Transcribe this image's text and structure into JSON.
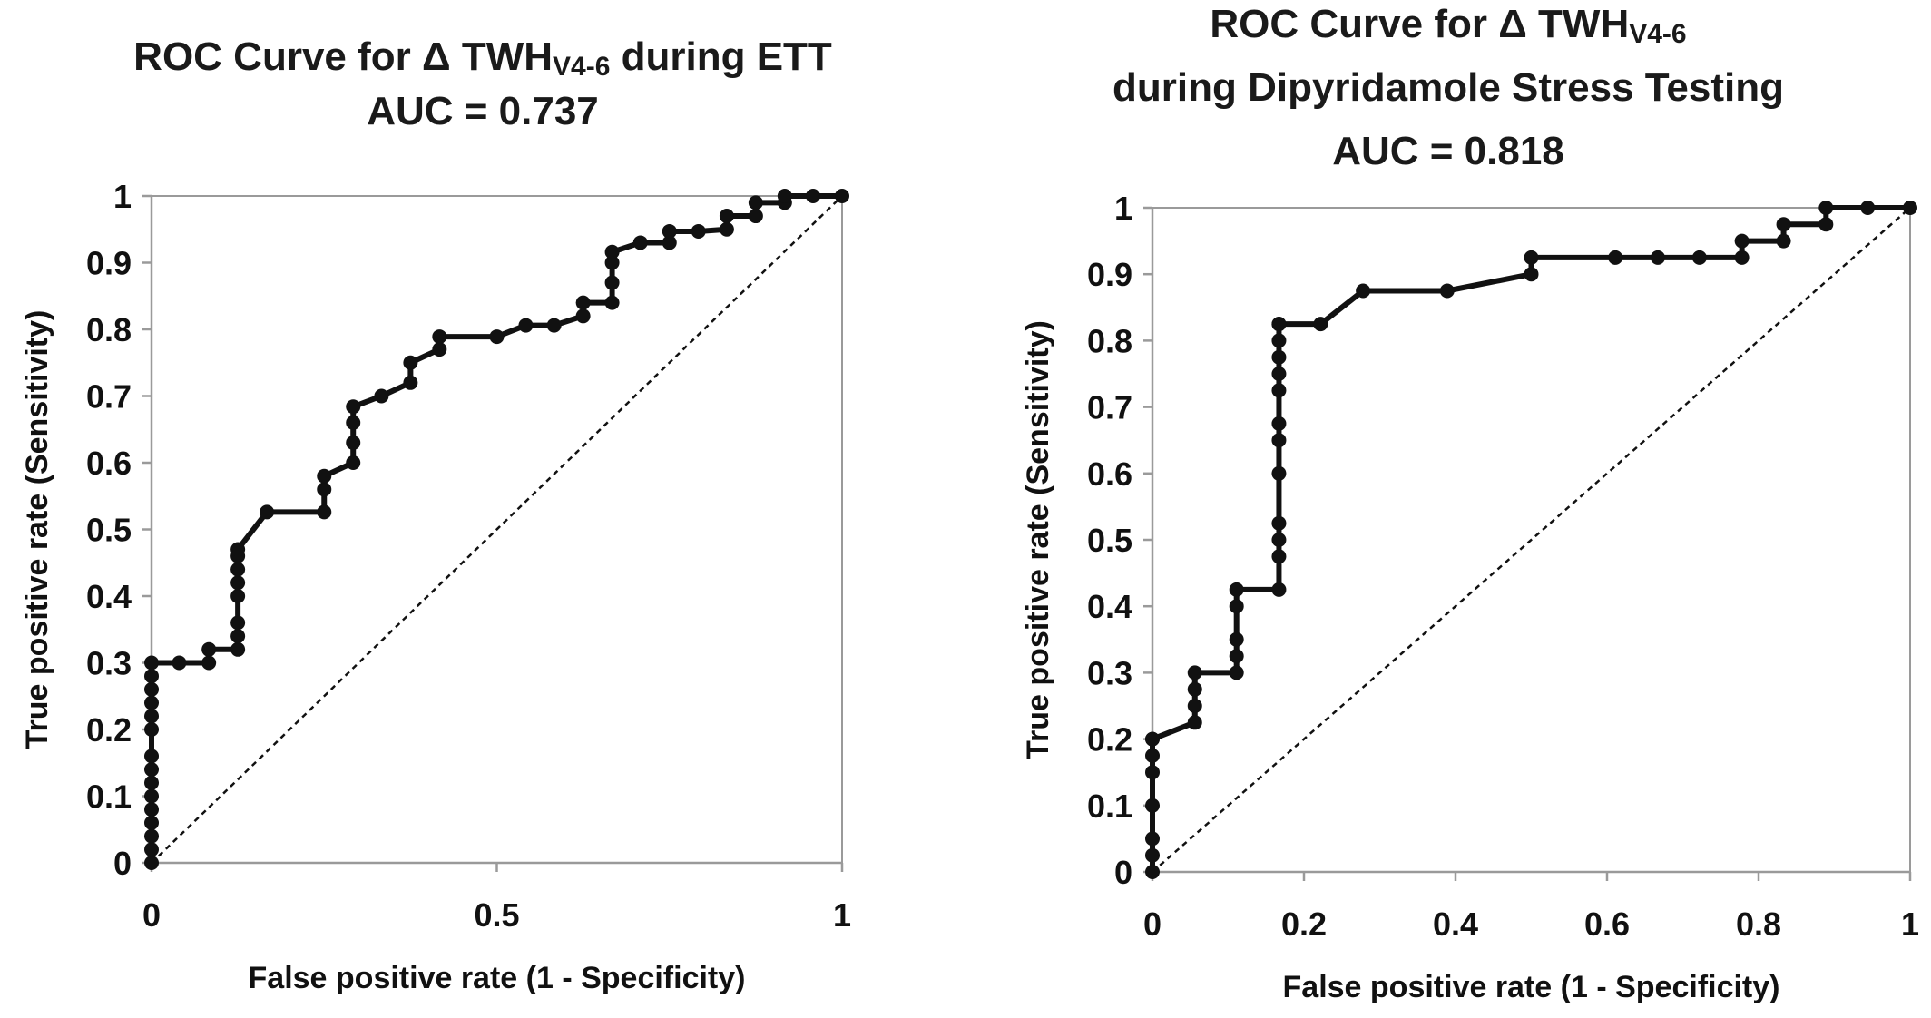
{
  "chart_data": [
    {
      "type": "line",
      "title_prefix": "ROC Curve for Δ TWH",
      "title_sub": "V4-6",
      "title_suffix": " during ETT",
      "title_line2": "",
      "auc_text": "AUC = 0.737",
      "xlabel": "False positive rate (1 - Specificity)",
      "ylabel": "True positive rate (Sensitivity)",
      "xlim": [
        0,
        1
      ],
      "ylim": [
        0,
        1
      ],
      "x_ticks": [
        "0",
        "0.5",
        "1"
      ],
      "x_tick_values": [
        0,
        0.5,
        1
      ],
      "y_ticks": [
        "0",
        "0.1",
        "0.2",
        "0.3",
        "0.4",
        "0.5",
        "0.6",
        "0.7",
        "0.8",
        "0.9",
        "1"
      ],
      "y_tick_values": [
        0,
        0.1,
        0.2,
        0.3,
        0.4,
        0.5,
        0.6,
        0.7,
        0.8,
        0.9,
        1
      ],
      "grid": false,
      "reference_line": "diagonal dashed",
      "series": [
        {
          "x": [
            0,
            0,
            0,
            0,
            0,
            0,
            0,
            0,
            0,
            0,
            0,
            0,
            0,
            0,
            0,
            0.04,
            0.083,
            0.083,
            0.125,
            0.125,
            0.125,
            0.125,
            0.125,
            0.125,
            0.125,
            0.125,
            0.167,
            0.25,
            0.25,
            0.25,
            0.292,
            0.292,
            0.292,
            0.292,
            0.333,
            0.375,
            0.375,
            0.417,
            0.417,
            0.5,
            0.542,
            0.583,
            0.625,
            0.625,
            0.667,
            0.667,
            0.667,
            0.667,
            0.708,
            0.75,
            0.75,
            0.792,
            0.833,
            0.833,
            0.875,
            0.875,
            0.917,
            0.917,
            0.958,
            1
          ],
          "y": [
            0,
            0.02,
            0.04,
            0.06,
            0.08,
            0.1,
            0.12,
            0.14,
            0.16,
            0.2,
            0.22,
            0.24,
            0.26,
            0.28,
            0.3,
            0.3,
            0.3,
            0.32,
            0.32,
            0.34,
            0.36,
            0.4,
            0.42,
            0.44,
            0.46,
            0.47,
            0.526,
            0.526,
            0.56,
            0.58,
            0.6,
            0.63,
            0.66,
            0.684,
            0.7,
            0.72,
            0.75,
            0.77,
            0.789,
            0.789,
            0.806,
            0.806,
            0.82,
            0.84,
            0.84,
            0.87,
            0.9,
            0.916,
            0.93,
            0.93,
            0.947,
            0.947,
            0.95,
            0.97,
            0.97,
            0.99,
            0.99,
            1,
            1,
            1
          ]
        }
      ]
    },
    {
      "type": "line",
      "title_prefix": "ROC Curve for Δ TWH",
      "title_sub": "V4-6",
      "title_suffix": "",
      "title_line2": "during Dipyridamole Stress Testing",
      "auc_text": "AUC = 0.818",
      "xlabel": "False positive rate (1 - Specificity)",
      "ylabel": "True positive rate (Sensitivity)",
      "xlim": [
        0,
        1
      ],
      "ylim": [
        0,
        1
      ],
      "x_ticks": [
        "0",
        "0.2",
        "0.4",
        "0.6",
        "0.8",
        "1"
      ],
      "x_tick_values": [
        0,
        0.2,
        0.4,
        0.6,
        0.8,
        1
      ],
      "y_ticks": [
        "0",
        "0.1",
        "0.2",
        "0.3",
        "0.4",
        "0.5",
        "0.6",
        "0.7",
        "0.8",
        "0.9",
        "1"
      ],
      "y_tick_values": [
        0,
        0.1,
        0.2,
        0.3,
        0.4,
        0.5,
        0.6,
        0.7,
        0.8,
        0.9,
        1
      ],
      "grid": false,
      "reference_line": "diagonal dashed",
      "series": [
        {
          "x": [
            0,
            0,
            0,
            0,
            0,
            0,
            0,
            0,
            0.056,
            0.056,
            0.056,
            0.056,
            0.111,
            0.111,
            0.111,
            0.111,
            0.111,
            0.167,
            0.167,
            0.167,
            0.167,
            0.167,
            0.167,
            0.167,
            0.167,
            0.167,
            0.167,
            0.167,
            0.167,
            0.167,
            0.167,
            0.222,
            0.278,
            0.389,
            0.5,
            0.5,
            0.611,
            0.667,
            0.722,
            0.778,
            0.778,
            0.833,
            0.833,
            0.889,
            0.889,
            0.944,
            1
          ],
          "y": [
            0,
            0.025,
            0.05,
            0.1,
            0.15,
            0.175,
            0.2,
            0.2,
            0.225,
            0.25,
            0.275,
            0.3,
            0.3,
            0.325,
            0.35,
            0.4,
            0.425,
            0.425,
            0.475,
            0.5,
            0.525,
            0.6,
            0.65,
            0.675,
            0.725,
            0.75,
            0.775,
            0.8,
            0.825,
            0.825,
            0.825,
            0.825,
            0.875,
            0.875,
            0.9,
            0.925,
            0.925,
            0.925,
            0.925,
            0.925,
            0.95,
            0.95,
            0.975,
            0.975,
            1,
            1,
            1
          ]
        }
      ]
    }
  ]
}
